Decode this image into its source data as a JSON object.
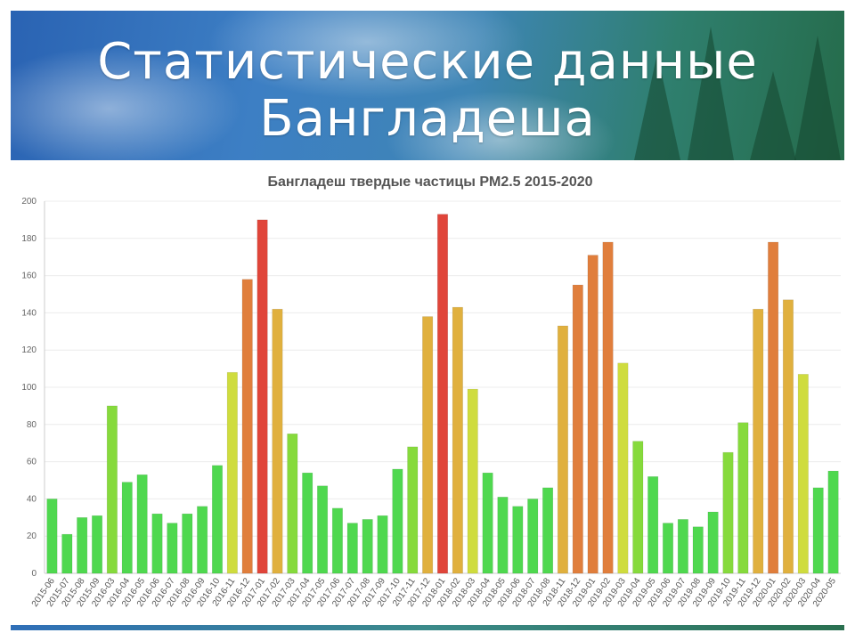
{
  "slide": {
    "title_line1": "Статистические данные",
    "title_line2": "Бангладеша"
  },
  "chart_data": {
    "type": "bar",
    "title": "Бангладеш твердые частицы PM2.5 2015-2020",
    "xlabel": "",
    "ylabel": "",
    "ylim": [
      0,
      200
    ],
    "yticks": [
      0,
      20,
      40,
      60,
      80,
      100,
      120,
      140,
      160,
      180,
      200
    ],
    "grid": true,
    "legend": "none",
    "categories": [
      "2015-06",
      "2015-07",
      "2015-08",
      "2015-09",
      "2016-03",
      "2016-04",
      "2016-05",
      "2016-06",
      "2016-07",
      "2016-08",
      "2016-09",
      "2016-10",
      "2016-11",
      "2016-12",
      "2017-01",
      "2017-02",
      "2017-03",
      "2017-04",
      "2017-05",
      "2017-06",
      "2017-07",
      "2017-08",
      "2017-09",
      "2017-10",
      "2017-11",
      "2017-12",
      "2018-01",
      "2018-02",
      "2018-03",
      "2018-04",
      "2018-05",
      "2018-06",
      "2018-07",
      "2018-08",
      "2018-11",
      "2018-12",
      "2019-01",
      "2019-02",
      "2019-03",
      "2019-04",
      "2019-05",
      "2019-06",
      "2019-07",
      "2019-08",
      "2019-09",
      "2019-10",
      "2019-11",
      "2019-12",
      "2020-01",
      "2020-02",
      "2020-03",
      "2020-04",
      "2020-05"
    ],
    "values": [
      40,
      21,
      30,
      31,
      90,
      49,
      53,
      32,
      27,
      32,
      36,
      58,
      108,
      158,
      190,
      142,
      75,
      54,
      47,
      35,
      27,
      29,
      31,
      56,
      68,
      138,
      193,
      143,
      99,
      54,
      41,
      36,
      40,
      46,
      133,
      155,
      171,
      178,
      113,
      71,
      52,
      27,
      29,
      25,
      33,
      65,
      81,
      142,
      178,
      147,
      107,
      46,
      55
    ],
    "colors": {
      "green": "#4fd84f",
      "light_green": "#86da3c",
      "yellow": "#cfdc3e",
      "orange_yellow": "#e0b03e",
      "orange": "#e07e3c",
      "red": "#e0453a",
      "grid": "#ececec",
      "axis": "#cccccc"
    }
  }
}
